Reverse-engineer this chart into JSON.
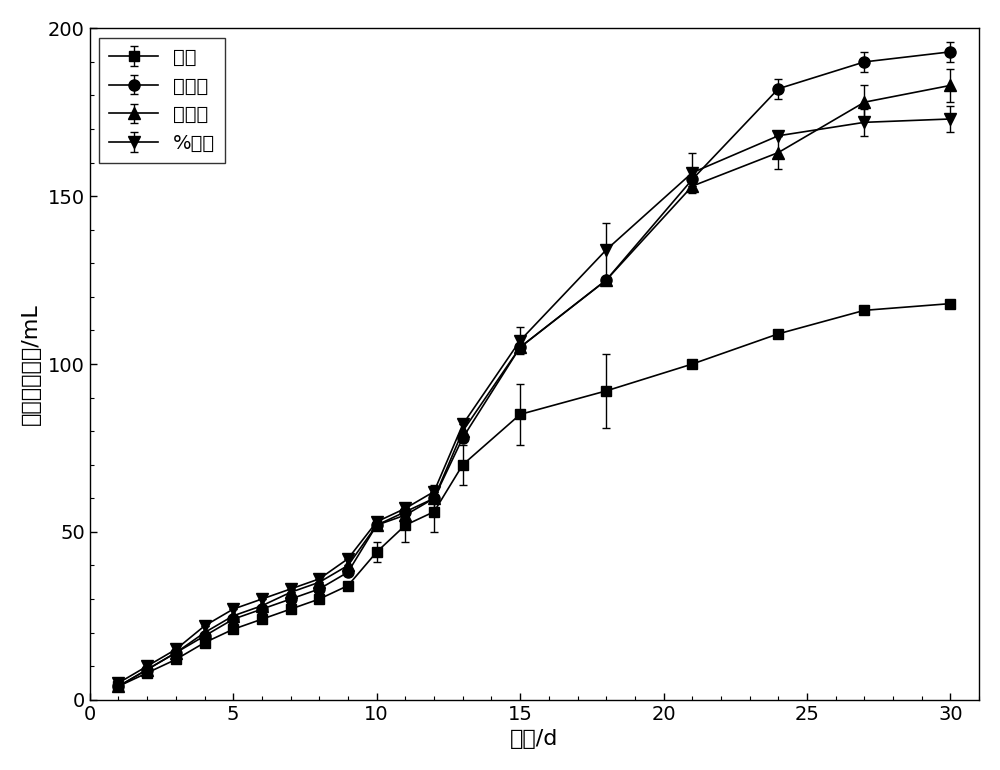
{
  "x": [
    1,
    2,
    3,
    4,
    5,
    6,
    7,
    8,
    9,
    10,
    11,
    12,
    13,
    15,
    18,
    21,
    24,
    27,
    30
  ],
  "kongbai": [
    4,
    8,
    12,
    17,
    21,
    24,
    27,
    30,
    34,
    44,
    52,
    56,
    70,
    85,
    92,
    100,
    109,
    116,
    118
  ],
  "kongbai_err": [
    0,
    0,
    0,
    0,
    0,
    0,
    0,
    0,
    0,
    3,
    5,
    6,
    6,
    9,
    11,
    0,
    0,
    0,
    0
  ],
  "diaqishi": [
    4,
    9,
    14,
    19,
    24,
    27,
    30,
    33,
    38,
    52,
    56,
    60,
    78,
    105,
    125,
    155,
    182,
    190,
    193
  ],
  "diaqishi_err": [
    0,
    0,
    0,
    0,
    0,
    0,
    0,
    0,
    0,
    0,
    0,
    0,
    0,
    0,
    0,
    0,
    3,
    3,
    3
  ],
  "huoxingtan": [
    4,
    9,
    14,
    20,
    25,
    28,
    32,
    35,
    40,
    52,
    55,
    60,
    80,
    105,
    125,
    153,
    163,
    178,
    183
  ],
  "huoxingtan_err": [
    0,
    0,
    0,
    0,
    0,
    0,
    0,
    0,
    0,
    0,
    0,
    4,
    0,
    0,
    0,
    0,
    5,
    5,
    5
  ],
  "shimei": [
    5,
    10,
    15,
    22,
    27,
    30,
    33,
    36,
    42,
    53,
    57,
    62,
    82,
    107,
    134,
    157,
    168,
    172,
    173
  ],
  "shimei_err": [
    0,
    0,
    0,
    0,
    0,
    0,
    0,
    0,
    0,
    0,
    0,
    0,
    0,
    4,
    8,
    6,
    0,
    4,
    4
  ],
  "xlabel": "时间/d",
  "ylabel": "累计甲烷产量/mL",
  "xlim": [
    0,
    31
  ],
  "ylim": [
    0,
    200
  ],
  "xticks": [
    0,
    5,
    10,
    15,
    20,
    25,
    30
  ],
  "yticks": [
    0,
    50,
    100,
    150,
    200
  ],
  "legend_labels": [
    "空白",
    "电气石",
    "活性炭",
    "%石墨"
  ],
  "line_color": "#000000",
  "background_color": "#ffffff"
}
